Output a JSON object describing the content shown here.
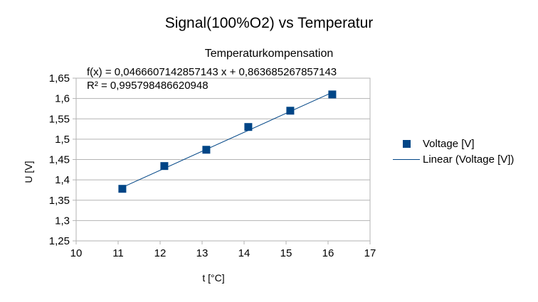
{
  "chart_data": {
    "type": "scatter",
    "title": "Signal(100%O2) vs Temperatur",
    "subtitle": "Temperaturkompensation",
    "xlabel": "t [°C]",
    "ylabel": "U [V]",
    "xlim": [
      10,
      17
    ],
    "ylim": [
      1.25,
      1.65
    ],
    "x_ticks": [
      "10",
      "11",
      "12",
      "13",
      "14",
      "15",
      "16",
      "17"
    ],
    "y_ticks": [
      "1,25",
      "1,3",
      "1,35",
      "1,4",
      "1,45",
      "1,5",
      "1,55",
      "1,6",
      "1,65"
    ],
    "grid": "horizontal",
    "legend_position": "right",
    "series": [
      {
        "name": "Voltage [V]",
        "marker": "square",
        "color": "#004586",
        "x": [
          11.1,
          12.1,
          13.1,
          14.1,
          15.1,
          16.1
        ],
        "y": [
          1.378,
          1.434,
          1.474,
          1.53,
          1.57,
          1.61
        ]
      }
    ],
    "trendline": {
      "name": "Linear (Voltage [V])",
      "type": "linear",
      "slope": 0.0466607142857143,
      "intercept": 0.863685267857143,
      "color": "#004586",
      "equation_label": "f(x) = 0,0466607142857143 x + 0,863685267857143",
      "r2_label": "R² = 0,995798486620948"
    }
  }
}
